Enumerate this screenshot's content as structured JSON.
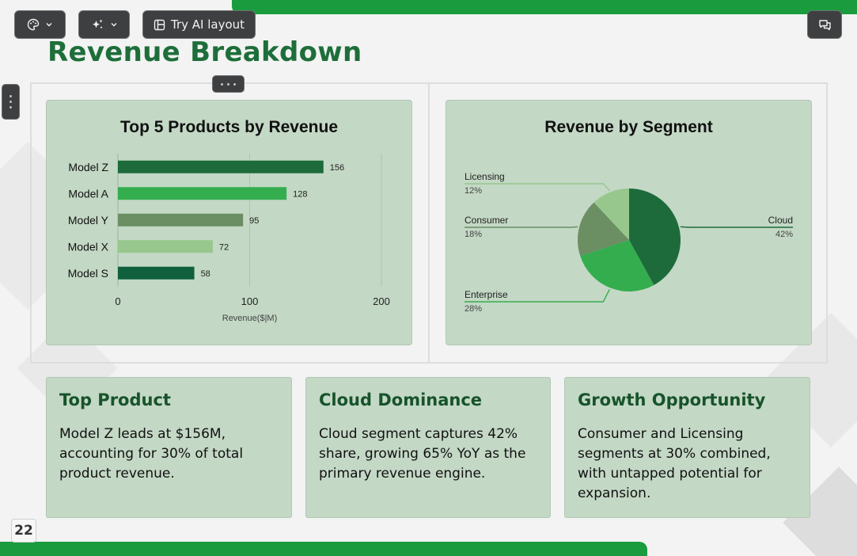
{
  "toolbar": {
    "theme_icon": "palette-icon",
    "magic_icon": "sparkles-icon",
    "try_ai_label": "Try AI layout",
    "comment_icon": "comments-icon"
  },
  "slide": {
    "title": "Revenue Breakdown",
    "page_number": "22"
  },
  "colors": {
    "brand_green": "#1a9c3e",
    "title_green": "#1e6e3a",
    "card_bg": "#c3d8c5"
  },
  "chart_data": [
    {
      "type": "bar",
      "orientation": "horizontal",
      "title": "Top 5 Products by Revenue",
      "categories": [
        "Model Z",
        "Model A",
        "Model Y",
        "Model X",
        "Model S"
      ],
      "values": [
        156,
        128,
        95,
        72,
        58
      ],
      "colors": [
        "#1d6b3a",
        "#34ad4f",
        "#6b8e63",
        "#97c78d",
        "#10603e"
      ],
      "xlabel": "Revenue($|M)",
      "xlim": [
        0,
        200
      ],
      "xticks": [
        "0",
        "100",
        "200"
      ],
      "grid": true
    },
    {
      "type": "pie",
      "title": "Revenue by Segment",
      "slices": [
        {
          "label": "Cloud",
          "value": 42,
          "pct": "42%",
          "color": "#1d6b3a"
        },
        {
          "label": "Enterprise",
          "value": 28,
          "pct": "28%",
          "color": "#34ad4f"
        },
        {
          "label": "Consumer",
          "value": 18,
          "pct": "18%",
          "color": "#6b8e63"
        },
        {
          "label": "Licensing",
          "value": 12,
          "pct": "12%",
          "color": "#97c78d"
        }
      ]
    }
  ],
  "insights": [
    {
      "title": "Top Product",
      "text": "Model Z leads at $156M, accounting for 30% of total product revenue."
    },
    {
      "title": "Cloud Dominance",
      "text": "Cloud segment captures 42% share, growing 65% YoY as the primary revenue engine."
    },
    {
      "title": "Growth Opportunity",
      "text": "Consumer and Licensing segments at 30% combined, with untapped potential for expansion."
    }
  ]
}
